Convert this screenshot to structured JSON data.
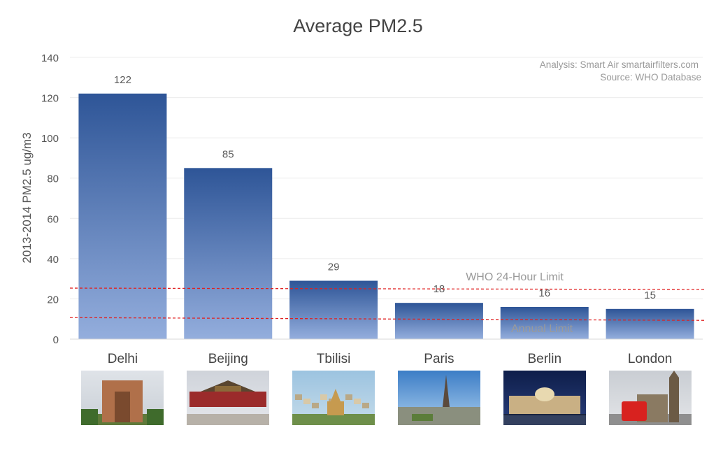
{
  "chart_data": {
    "type": "bar",
    "title": "Average PM2.5",
    "ylabel": "2013-2014 PM2.5 ug/m3",
    "xlabel": "",
    "categories": [
      "Delhi",
      "Beijing",
      "Tbilisi",
      "Paris",
      "Berlin",
      "London"
    ],
    "values": [
      122,
      85,
      29,
      18,
      16,
      15
    ],
    "data_labels": [
      "122",
      "85",
      "29",
      "18",
      "16",
      "15"
    ],
    "ylim": [
      0,
      140
    ],
    "yticks": [
      0,
      20,
      40,
      60,
      80,
      100,
      120,
      140
    ],
    "grid": true,
    "reference_lines": [
      {
        "label": "WHO 24-Hour Limit",
        "value": 25,
        "color": "#e02020",
        "style": "dashed"
      },
      {
        "label": "Annual Limit",
        "value": 10,
        "color": "#e02020",
        "style": "dashed"
      }
    ],
    "annotations": [
      "Analysis: Smart Air smartairfilters.com",
      "Source: WHO Database"
    ],
    "city_images": [
      "india-gate-photo",
      "forbidden-city-photo",
      "tbilisi-cityscape-photo",
      "eiffel-tower-photo",
      "reichstag-photo",
      "big-ben-bus-photo"
    ],
    "colors": {
      "bar_top": "#2e5597",
      "bar_bottom": "#94aedd",
      "grid": "#ececec",
      "axis_text": "#555555",
      "label_text": "#5a5a5a",
      "note_text": "#9a9a9a",
      "limit_line": "#e02020"
    }
  }
}
